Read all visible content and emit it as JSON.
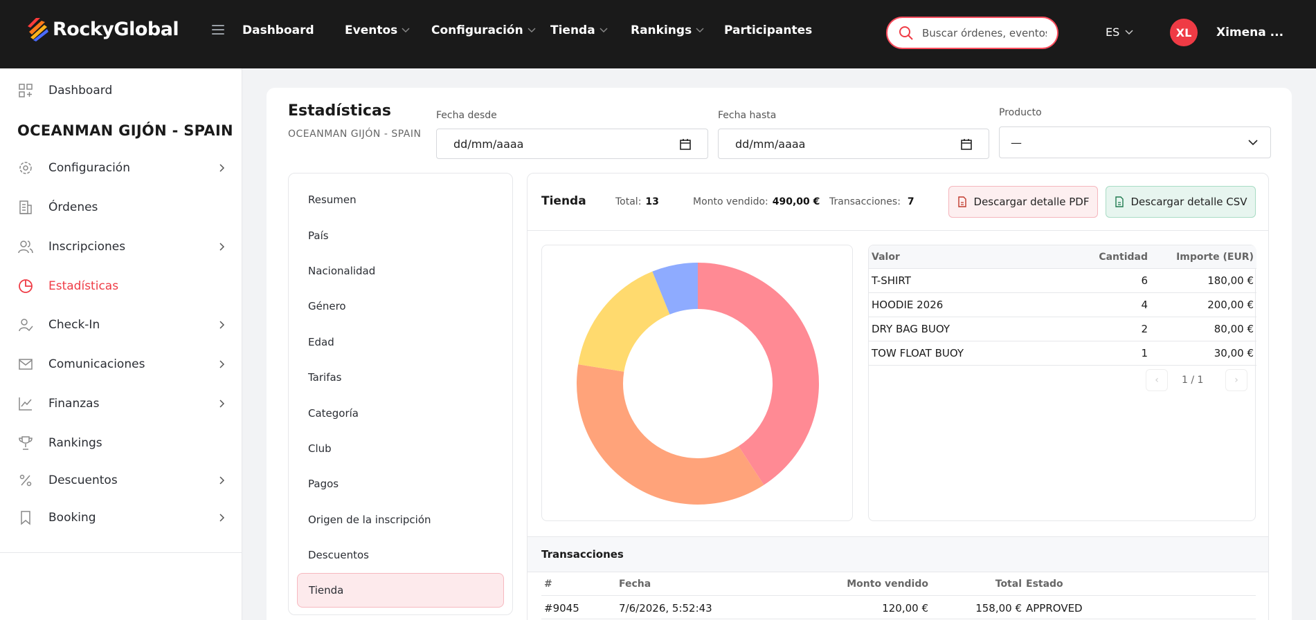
{
  "brand": {
    "name": "RockyGlobal"
  },
  "nav": {
    "items": [
      {
        "label": "Dashboard"
      },
      {
        "label": "Eventos"
      },
      {
        "label": "Configuración"
      },
      {
        "label": "Tienda"
      },
      {
        "label": "Rankings"
      },
      {
        "label": "Participantes"
      }
    ],
    "search_placeholder": "Buscar órdenes, eventos",
    "lang": "ES",
    "avatar_initials": "XL",
    "user_name": "Ximena ..."
  },
  "sidebar": {
    "dashboard": "Dashboard",
    "event_title": "OCEANMAN GIJÓN - SPAIN",
    "items": [
      {
        "label": "Configuración",
        "icon": "gear-icon"
      },
      {
        "label": "Órdenes",
        "icon": "receipt-icon"
      },
      {
        "label": "Inscripciones",
        "icon": "users-icon"
      },
      {
        "label": "Estadísticas",
        "icon": "pie-chart-icon"
      },
      {
        "label": "Check-In",
        "icon": "user-check-icon"
      },
      {
        "label": "Comunicaciones",
        "icon": "mail-icon"
      },
      {
        "label": "Finanzas",
        "icon": "line-chart-icon"
      },
      {
        "label": "Rankings",
        "icon": "trophy-icon"
      },
      {
        "label": "Descuentos",
        "icon": "percent-icon"
      },
      {
        "label": "Booking",
        "icon": "bookmark-icon"
      }
    ]
  },
  "main": {
    "title": "Estadísticas",
    "subtitle": "OCEANMAN GIJÓN - SPAIN",
    "filters": {
      "date_from_label": "Fecha desde",
      "date_from_value": "dd/mm/aaaa",
      "date_to_label": "Fecha hasta",
      "date_to_value": "dd/mm/aaaa",
      "product_label": "Producto",
      "product_value": "—"
    },
    "stat_menu": [
      "Resumen",
      "País",
      "Nacionalidad",
      "Género",
      "Edad",
      "Tarifas",
      "Categoría",
      "Club",
      "Pagos",
      "Origen de la inscripción",
      "Descuentos",
      "Tienda"
    ],
    "panel": {
      "title": "Tienda",
      "total_label": "Total:",
      "total_value": "13",
      "amount_label": "Monto vendido:",
      "amount_value": "490,00 €",
      "tx_label": "Transacciones:",
      "tx_value": "7",
      "pdf_button": "Descargar detalle PDF",
      "csv_button": "Descargar detalle CSV"
    },
    "table": {
      "headers": {
        "value": "Valor",
        "qty": "Cantidad",
        "amount": "Importe (EUR)"
      },
      "rows": [
        {
          "value": "T-SHIRT",
          "qty": "6",
          "amount": "180,00 €"
        },
        {
          "value": "HOODIE 2026",
          "qty": "4",
          "amount": "200,00 €"
        },
        {
          "value": "DRY BAG BUOY",
          "qty": "2",
          "amount": "80,00 €"
        },
        {
          "value": "TOW FLOAT BUOY",
          "qty": "1",
          "amount": "30,00 €"
        }
      ],
      "pager": "1 / 1",
      "prev": "‹",
      "next": "›"
    },
    "transactions": {
      "title": "Transacciones",
      "headers": {
        "num": "#",
        "date": "Fecha",
        "amount": "Monto vendido",
        "total": "Total",
        "status": "Estado"
      },
      "rows": [
        {
          "num": "#9045",
          "date": "7/6/2026, 5:52:43",
          "amount": "120,00 €",
          "total": "158,00 €",
          "status": "APPROVED"
        }
      ]
    }
  },
  "chart_data": {
    "type": "pie",
    "donut": true,
    "categories": [
      "HOODIE 2026",
      "T-SHIRT",
      "DRY BAG BUOY",
      "TOW FLOAT BUOY"
    ],
    "values": [
      200,
      180,
      80,
      30
    ],
    "colors": [
      "#ff8a94",
      "#ffa37a",
      "#ffda6e",
      "#8eabff"
    ]
  }
}
